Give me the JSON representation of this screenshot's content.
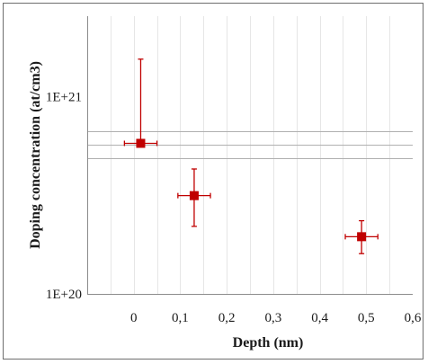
{
  "chart_data": {
    "type": "scatter",
    "xlabel": "Depth (nm)",
    "ylabel": "Doping concentration (at/cm3)",
    "x_ticks": [
      "0",
      "0,1",
      "0,2",
      "0,3",
      "0,4",
      "0,5",
      "0,6"
    ],
    "x_tick_values": [
      0,
      0.1,
      0.2,
      0.3,
      0.4,
      0.5,
      0.6
    ],
    "y_ticks": [
      "1E+20",
      "1E+21"
    ],
    "y_tick_values": [
      1e+20,
      1e+21
    ],
    "xlim": [
      -0.1,
      0.6
    ],
    "ylim": [
      1e+20,
      2.56e+21
    ],
    "y_scale": "log",
    "grid": "vertical",
    "legend": "none",
    "marker_color": "#c00000",
    "series": [
      {
        "points": [
          {
            "x": 0.015,
            "y": 5.8e+20,
            "xerr": 0.035,
            "y_low": 5.8e+20,
            "y_high": 1.55e+21
          },
          {
            "x": 0.13,
            "y": 3.15e+20,
            "xerr": 0.035,
            "y_low": 2.2e+20,
            "y_high": 4.3e+20
          },
          {
            "x": 0.49,
            "y": 1.95e+20,
            "xerr": 0.035,
            "y_low": 1.6e+20,
            "y_high": 2.35e+20
          }
        ]
      }
    ],
    "reference_lines": [
      {
        "y": 6.7e+20,
        "color": "#b0b0b0"
      },
      {
        "y": 5.7e+20,
        "color": "#b0b0b0"
      },
      {
        "y": 4.9e+20,
        "color": "#b0b0b0"
      }
    ]
  }
}
